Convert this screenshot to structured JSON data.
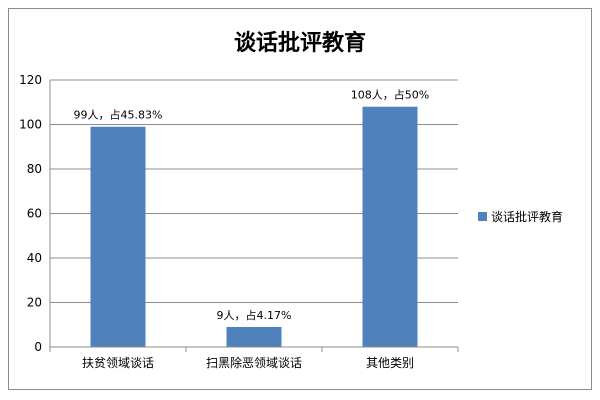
{
  "chart_data": {
    "type": "bar",
    "title": "谈话批评教育",
    "categories": [
      "扶贫领域谈话",
      "扫黑除恶领域谈话",
      "其他类别"
    ],
    "series": [
      {
        "name": "谈话批评教育",
        "values": [
          99,
          9,
          108
        ],
        "color": "#4f81bd"
      }
    ],
    "data_labels": [
      "99人，占45.83%",
      "9人，占4.17%",
      "108人，占50%"
    ],
    "ylim": [
      0,
      120
    ],
    "yticks": [
      0,
      20,
      40,
      60,
      80,
      100,
      120
    ],
    "grid": true,
    "legend": "right"
  }
}
